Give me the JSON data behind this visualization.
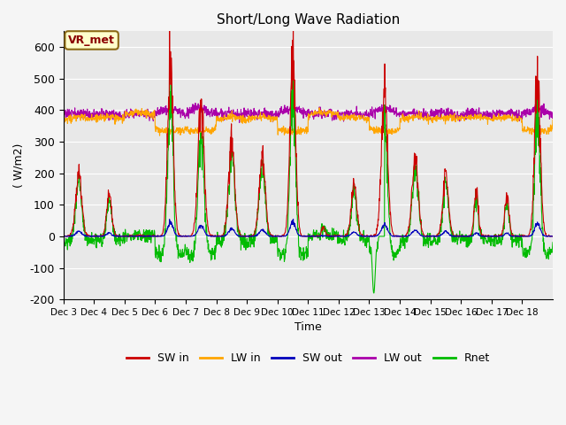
{
  "title": "Short/Long Wave Radiation",
  "xlabel": "Time",
  "ylabel": "( W/m2)",
  "ylim": [
    -200,
    650
  ],
  "yticks": [
    -200,
    -100,
    0,
    100,
    200,
    300,
    400,
    500,
    600
  ],
  "xtick_labels": [
    "Dec 3",
    "Dec 4",
    "Dec 5",
    "Dec 6",
    "Dec 7",
    "Dec 8",
    "Dec 9",
    "Dec 10",
    "Dec 11",
    "Dec 12",
    "Dec 13",
    "Dec 14",
    "Dec 15",
    "Dec 16",
    "Dec 17",
    "Dec 18"
  ],
  "colors": {
    "SW_in": "#cc0000",
    "LW_in": "#ffa500",
    "SW_out": "#0000bb",
    "LW_out": "#aa00aa",
    "Rnet": "#00bb00"
  },
  "line_widths": {
    "SW_in": 0.8,
    "LW_in": 0.8,
    "SW_out": 0.8,
    "LW_out": 0.8,
    "Rnet": 0.8
  },
  "legend_labels": [
    "SW in",
    "LW in",
    "SW out",
    "LW out",
    "Rnet"
  ],
  "annotation_text": "VR_met",
  "background_color": "#e8e8e8",
  "grid_color": "#ffffff",
  "title_fontsize": 11,
  "n_days": 16,
  "pts_per_day": 96,
  "day_peaks_SWin": [
    200,
    135,
    5,
    550,
    420,
    300,
    250,
    570,
    30,
    160,
    450,
    240,
    200,
    130,
    130,
    520
  ],
  "day_widths_SWin": [
    0.1,
    0.08,
    0.04,
    0.09,
    0.1,
    0.1,
    0.1,
    0.09,
    0.06,
    0.09,
    0.1,
    0.1,
    0.09,
    0.07,
    0.07,
    0.09
  ],
  "LW_in_base": 370,
  "LW_out_base": 385,
  "rnet_deep_negative_day": 10,
  "rnet_deep_value": -180
}
